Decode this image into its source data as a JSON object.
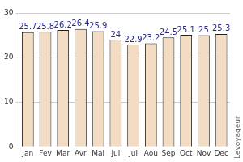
{
  "chart_data": {
    "type": "bar",
    "categories": [
      "Jan",
      "Fev",
      "Mar",
      "Avr",
      "Mai",
      "Jui",
      "Jui",
      "Aou",
      "Sep",
      "Oct",
      "Nov",
      "Dec"
    ],
    "values": [
      25.7,
      25.8,
      26.2,
      26.4,
      25.9,
      24,
      22.9,
      23.2,
      24.5,
      25.1,
      25,
      25.3
    ],
    "color": "#f3dcc4",
    "ylim": [
      0,
      30
    ],
    "yticks": [
      0,
      10,
      20,
      30
    ],
    "grid": true,
    "data_labels": true,
    "annotations": [
      "Levoyageur"
    ]
  }
}
